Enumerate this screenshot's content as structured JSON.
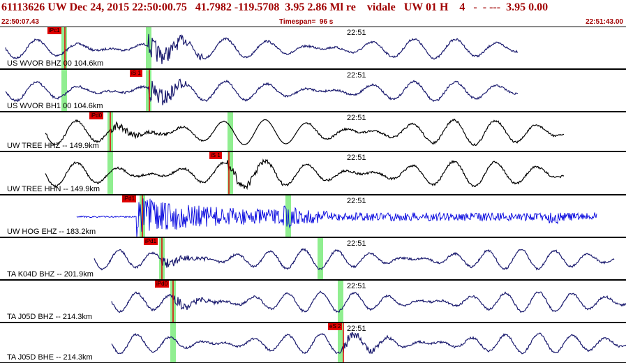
{
  "header": {
    "title": "61113626 UW Dec 24, 2015 22:50:00.75   41.7982 -119.5708  3.95 2.86 Ml re    vidale   UW 01 H    4   -  - ---  3.95 0.00",
    "start_time": "22:50:07.43",
    "timespan": "Timespan=  96 s",
    "end_time": "22:51:43.00"
  },
  "colors": {
    "header_text": "#a00000",
    "pick": "#e00000",
    "pick_band": "#90ee90"
  },
  "channels": [
    {
      "label": "US WVOR BHZ 00 104.6km",
      "minute": "22:51",
      "pick": "iPc1",
      "color": "#1a1a6e"
    },
    {
      "label": "US WVOR BH1 00 104.6km",
      "minute": "22:51",
      "pick": "iS 1",
      "color": "#1a1a6e"
    },
    {
      "label": "UW TREE HHZ -- 149.9km",
      "minute": "22:51",
      "pick": "iPd0",
      "color": "#000000"
    },
    {
      "label": "UW TREE HHN -- 149.9km",
      "minute": "22:51",
      "pick": "iS 1",
      "color": "#000000"
    },
    {
      "label": "UW HOG EHZ -- 183.2km",
      "minute": "22:51",
      "pick": "iPd1",
      "color": "#0000dd"
    },
    {
      "label": "TA K04D BHZ -- 201.9km",
      "minute": "22:51",
      "pick": "iPd1",
      "color": "#1a1a6e"
    },
    {
      "label": "TA J05D BHZ -- 214.3km",
      "minute": "22:51",
      "pick": "iPd0",
      "color": "#1a1a6e"
    },
    {
      "label": "TA J05D BHE -- 214.3km",
      "minute": "22:51",
      "pick": "eS 2",
      "color": "#1a1a6e"
    }
  ]
}
